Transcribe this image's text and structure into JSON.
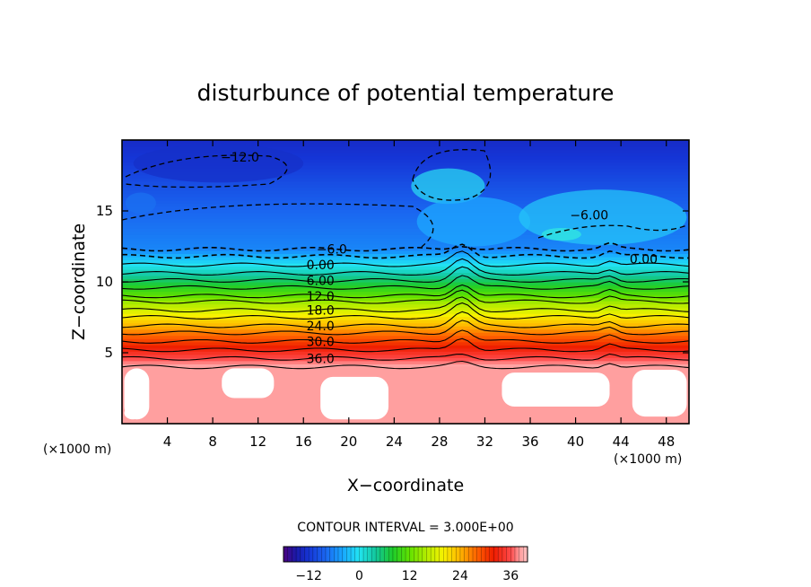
{
  "chart_data": {
    "type": "heatmap",
    "title": "disturbunce of potential temperature",
    "xlabel": "X−coordinate",
    "ylabel": "Z−coordinate",
    "x_unit": "(×1000 m)",
    "y_unit": "(×1000 m)",
    "xlim": [
      0,
      50
    ],
    "ylim": [
      0,
      20
    ],
    "x_ticks": [
      4,
      8,
      12,
      16,
      20,
      24,
      28,
      32,
      36,
      40,
      44,
      48
    ],
    "x_tick_labels": [
      "4",
      "8",
      "12",
      "16",
      "20",
      "24",
      "28",
      "32",
      "36",
      "40",
      "44",
      "48"
    ],
    "y_ticks": [
      5,
      10,
      15
    ],
    "y_tick_labels": [
      "5",
      "10",
      "15"
    ],
    "contour_interval_text": "CONTOUR INTERVAL = 3.000E+00",
    "contour_interval": 3,
    "colorbar": {
      "min": -18,
      "max": 40,
      "ticks": [
        -12,
        0,
        12,
        24,
        36
      ],
      "tick_labels": [
        "−12",
        "0",
        "12",
        "24",
        "36"
      ]
    },
    "contour_labels": [
      {
        "text": "−12.0",
        "x": 10.4,
        "z": 18.8
      },
      {
        "text": "−6.0",
        "x": 18.5,
        "z": 12.3
      },
      {
        "text": "0.00",
        "x": 17.5,
        "z": 11.2
      },
      {
        "text": "6.00",
        "x": 17.5,
        "z": 10.1
      },
      {
        "text": "12.0",
        "x": 17.5,
        "z": 9.0
      },
      {
        "text": "18.0",
        "x": 17.5,
        "z": 8.0
      },
      {
        "text": "24.0",
        "x": 17.5,
        "z": 6.9
      },
      {
        "text": "30.0",
        "x": 17.5,
        "z": 5.8
      },
      {
        "text": "36.0",
        "x": 17.5,
        "z": 4.6
      },
      {
        "text": "−6.00",
        "x": 41.2,
        "z": 14.7
      },
      {
        "text": "0.00",
        "x": 46.0,
        "z": 11.6
      }
    ],
    "profile": {
      "z_levels": [
        0,
        4,
        4.6,
        5.2,
        5.8,
        6.4,
        6.9,
        7.5,
        8.0,
        8.6,
        9.0,
        9.6,
        10.1,
        10.6,
        11.2,
        11.8,
        12.3,
        15,
        17,
        18.8,
        20
      ],
      "theta": [
        42,
        39,
        36,
        33,
        30,
        27,
        24,
        21,
        18,
        15,
        12,
        9,
        6,
        3,
        0,
        -3,
        -6,
        -8,
        -10,
        -12,
        -13
      ]
    }
  }
}
